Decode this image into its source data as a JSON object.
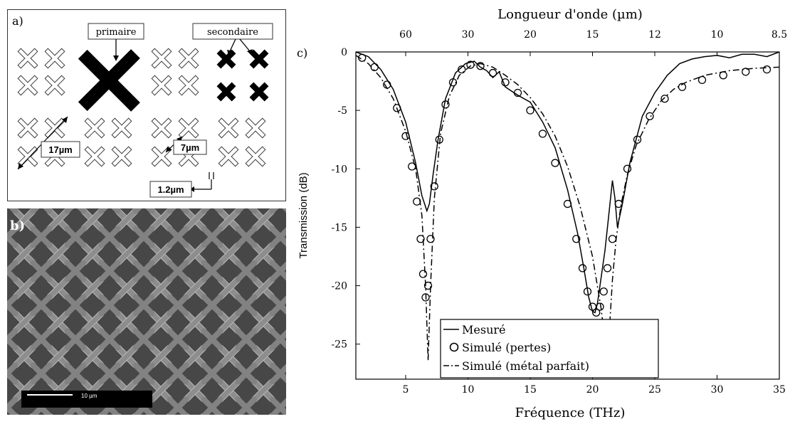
{
  "panel_a": {
    "letter": "a)",
    "label_primary": "primaire",
    "label_secondary": "secondaire",
    "dim_period": "17µm",
    "dim_cross": "7µm",
    "dim_gap": "1.2µm"
  },
  "panel_b": {
    "letter": "b)",
    "scale_label": "10 µm"
  },
  "panel_c": {
    "letter": "c)"
  },
  "chart_data": {
    "type": "line",
    "title": "",
    "xlabel": "Fréquence (THz)",
    "ylabel": "Transmission (dB)",
    "top_axis_label": "Longueur d'onde (µm)",
    "xlim": [
      1,
      35
    ],
    "ylim": [
      -28,
      0
    ],
    "x_ticks": [
      5,
      10,
      15,
      20,
      25,
      30,
      35
    ],
    "y_ticks": [
      0,
      -5,
      -10,
      -15,
      -20,
      -25
    ],
    "top_ticks": [
      {
        "label": "60",
        "freq": 5
      },
      {
        "label": "30",
        "freq": 10
      },
      {
        "label": "20",
        "freq": 15
      },
      {
        "label": "15",
        "freq": 20
      },
      {
        "label": "12",
        "freq": 25
      },
      {
        "label": "10",
        "freq": 30
      },
      {
        "label": "8.5",
        "freq": 35
      }
    ],
    "legend_position": "bottom-center",
    "series": [
      {
        "name": "Mesuré",
        "style": "solid",
        "x": [
          1,
          2,
          3,
          4,
          5,
          5.8,
          6.3,
          6.7,
          6.9,
          7.2,
          7.6,
          8.2,
          9,
          9.8,
          10.5,
          11,
          11.5,
          12,
          12.5,
          13,
          14,
          15,
          16,
          17,
          18,
          18.8,
          19.3,
          19.7,
          20,
          20.2,
          20.4,
          20.6,
          20.8,
          21,
          21.3,
          21.6,
          21.8,
          22,
          22.4,
          23,
          24,
          25,
          26,
          27,
          28,
          29,
          30,
          31,
          32,
          33,
          34,
          35
        ],
        "y": [
          0,
          -0.4,
          -1.5,
          -3.2,
          -6.0,
          -9.5,
          -12.3,
          -13.6,
          -13.0,
          -10.5,
          -7.5,
          -4.0,
          -1.8,
          -1.0,
          -0.8,
          -1.3,
          -1.6,
          -2.2,
          -1.7,
          -3.0,
          -3.7,
          -4.3,
          -6.0,
          -8.2,
          -11.8,
          -15.5,
          -18.5,
          -21.0,
          -22.2,
          -22.3,
          -21.5,
          -20.0,
          -18.5,
          -17.0,
          -14.0,
          -11.0,
          -12.5,
          -15.0,
          -13.0,
          -9.5,
          -5.5,
          -3.5,
          -2.0,
          -1.0,
          -0.6,
          -0.4,
          -0.3,
          -0.5,
          -0.2,
          -0.2,
          -0.4,
          0
        ]
      },
      {
        "name": "Simulé (pertes)",
        "style": "circles",
        "x": [
          1.5,
          2.5,
          3.5,
          4.3,
          5.0,
          5.5,
          5.9,
          6.2,
          6.4,
          6.6,
          6.8,
          7.0,
          7.3,
          7.7,
          8.2,
          8.8,
          9.5,
          10.2,
          11,
          12,
          13,
          14,
          15,
          16,
          17,
          18,
          18.7,
          19.2,
          19.6,
          20.0,
          20.3,
          20.6,
          20.9,
          21.2,
          21.6,
          22.1,
          22.8,
          23.6,
          24.6,
          25.8,
          27.2,
          28.8,
          30.5,
          32.3,
          34
        ],
        "y": [
          -0.5,
          -1.3,
          -2.8,
          -4.8,
          -7.2,
          -9.8,
          -12.8,
          -16.0,
          -19.0,
          -21.0,
          -20.0,
          -16.0,
          -11.5,
          -7.5,
          -4.5,
          -2.6,
          -1.5,
          -1.1,
          -1.2,
          -1.8,
          -2.6,
          -3.5,
          -5.0,
          -7.0,
          -9.5,
          -13.0,
          -16.0,
          -18.5,
          -20.5,
          -21.8,
          -22.3,
          -21.8,
          -20.5,
          -18.5,
          -16.0,
          -13.0,
          -10.0,
          -7.5,
          -5.5,
          -4.0,
          -3.0,
          -2.4,
          -2.0,
          -1.7,
          -1.5
        ]
      },
      {
        "name": "Simulé (métal parfait)",
        "style": "dashdot",
        "x": [
          1,
          2,
          3,
          4,
          5,
          5.8,
          6.3,
          6.6,
          6.8,
          7.0,
          7.3,
          7.8,
          8.5,
          9.3,
          10.2,
          11,
          12,
          13,
          14,
          15,
          16,
          17,
          18,
          19,
          20,
          20.7,
          21.1,
          21.4,
          21.6,
          21.9,
          22.3,
          22.8,
          23.5,
          24.5,
          25.5,
          26.5,
          27.5,
          29,
          31,
          33,
          35
        ],
        "y": [
          -0.3,
          -1.0,
          -2.2,
          -4.0,
          -6.8,
          -10.0,
          -14.0,
          -20.0,
          -26.4,
          -20.0,
          -12.5,
          -7.0,
          -3.8,
          -2.0,
          -1.2,
          -1.0,
          -1.3,
          -2.0,
          -2.8,
          -3.9,
          -5.3,
          -7.2,
          -9.8,
          -13.2,
          -17.5,
          -22.0,
          -25.8,
          -23.0,
          -19.5,
          -16.0,
          -13.0,
          -10.5,
          -8.0,
          -5.8,
          -4.2,
          -3.2,
          -2.6,
          -2.0,
          -1.6,
          -1.4,
          -1.3
        ]
      }
    ]
  }
}
